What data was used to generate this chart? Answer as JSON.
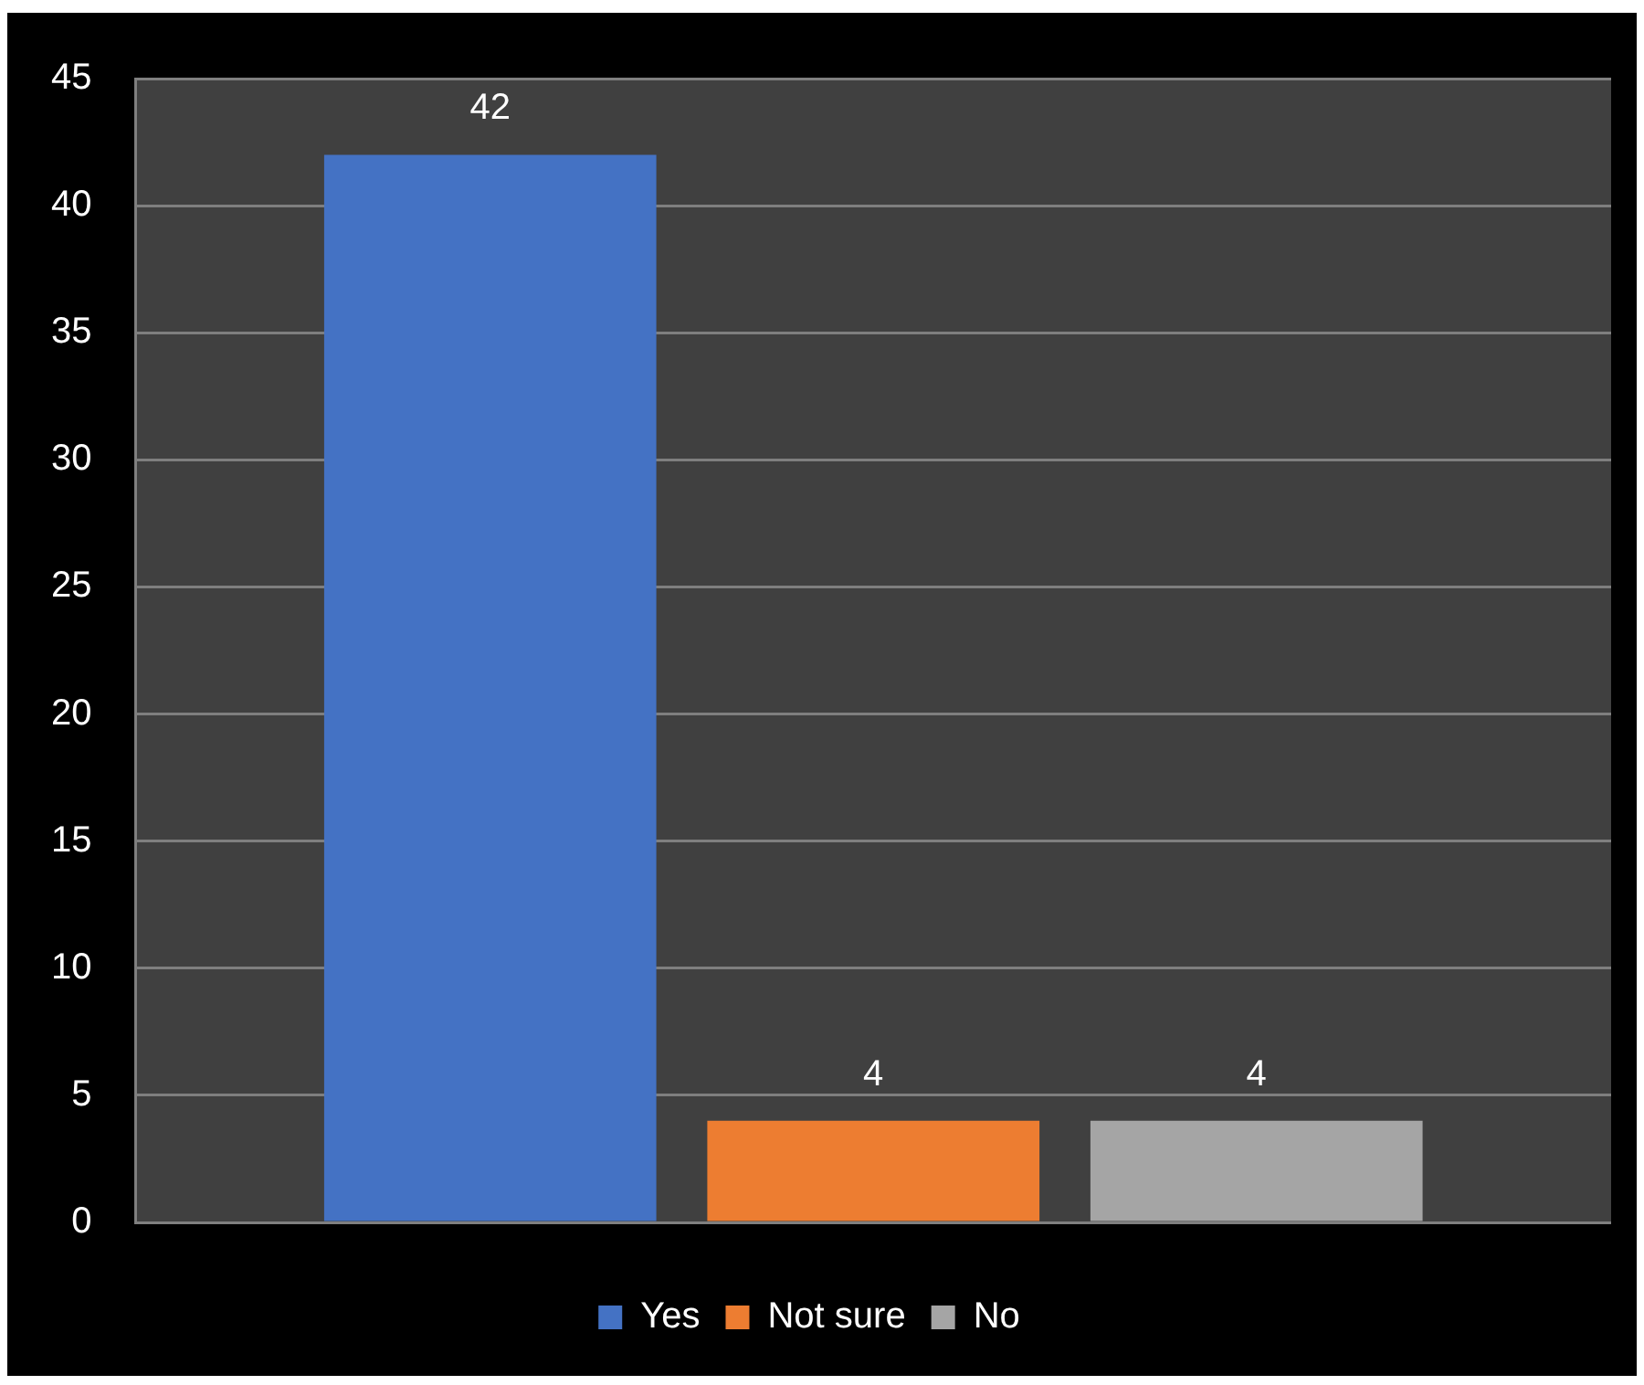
{
  "chart_data": {
    "type": "bar",
    "categories": [
      null
    ],
    "series": [
      {
        "name": "Yes",
        "color": "#4472c4",
        "values": [
          42
        ]
      },
      {
        "name": "Not sure",
        "color": "#ed7d31",
        "values": [
          4
        ]
      },
      {
        "name": "No",
        "color": "#a5a5a5",
        "values": [
          4
        ]
      }
    ],
    "ylim": [
      0,
      45
    ],
    "yticks": [
      0,
      5,
      10,
      15,
      20,
      25,
      30,
      35,
      40,
      45
    ],
    "grid": "y",
    "legend": "bottom",
    "data_labels": true
  }
}
